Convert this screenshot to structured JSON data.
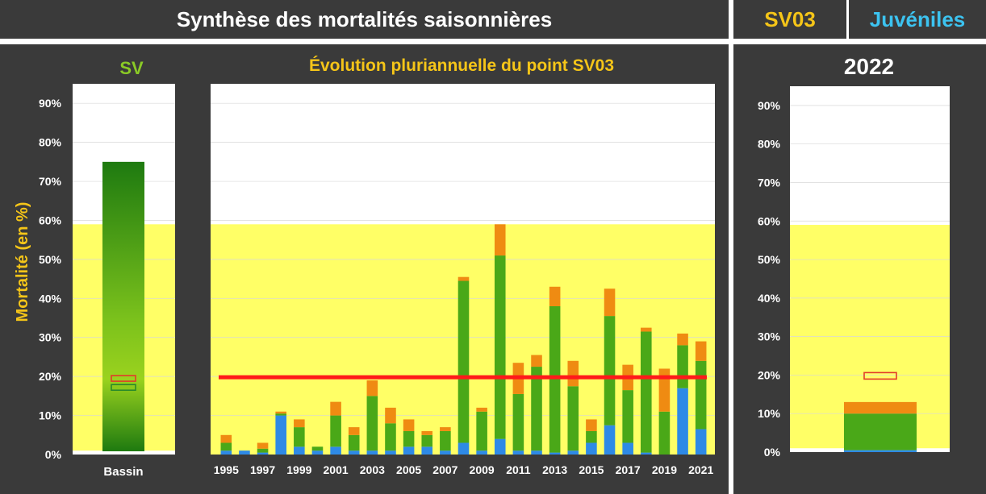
{
  "header": {
    "title": "Synthèse des mortalités saisonnières",
    "station": "SV03",
    "category": "Juvéniles",
    "station_color": "#f5c518",
    "category_color": "#3cc3f0"
  },
  "colors": {
    "panel_bg": "#3a3a3a",
    "zone_yellow": "#ffff66",
    "threshold_red": "#ff1a1a",
    "title_yellow": "#f5c518",
    "sv_green": "#8ac926"
  },
  "chart_data": [
    {
      "type": "bar",
      "title": "SV",
      "categories": [
        "Bassin"
      ],
      "values": [
        75
      ],
      "markers": [
        {
          "value": 19.5,
          "color": "#e23b2a"
        },
        {
          "value": 17.2,
          "color": "#2a8a2a"
        }
      ],
      "ylabel": "Mortalité (en %)",
      "ylim": [
        0,
        95
      ],
      "yticks": [
        "0%",
        "10%",
        "20%",
        "30%",
        "40%",
        "50%",
        "60%",
        "70%",
        "80%",
        "90%"
      ],
      "zone": [
        1,
        59
      ]
    },
    {
      "type": "bar",
      "title": "Évolution pluriannuelle du point SV03",
      "stacked": true,
      "categories": [
        "1995",
        "1996",
        "1997",
        "1998",
        "1999",
        "2000",
        "2001",
        "2002",
        "2003",
        "2004",
        "2005",
        "2006",
        "2007",
        "2008",
        "2009",
        "2010",
        "2011",
        "2012",
        "2013",
        "2014",
        "2015",
        "2016",
        "2017",
        "2018",
        "2019",
        "2020",
        "2021"
      ],
      "xticks": [
        "1995",
        "1997",
        "1999",
        "2001",
        "2003",
        "2005",
        "2007",
        "2009",
        "2011",
        "2013",
        "2015",
        "2017",
        "2019",
        "2021"
      ],
      "series": [
        {
          "values": [
            1,
            1,
            0.5,
            10,
            2,
            1,
            2,
            1,
            1,
            1,
            2,
            2,
            1,
            3,
            1,
            4,
            1,
            1,
            0.5,
            1,
            3,
            7.5,
            3,
            0.5,
            0,
            17,
            6.5
          ],
          "color": "#2e8ae6"
        },
        {
          "values": [
            2,
            0,
            1,
            0.5,
            5,
            1,
            8,
            4,
            14,
            7,
            4,
            3,
            5,
            41.5,
            10,
            47,
            14.5,
            21.5,
            37.5,
            16.5,
            3,
            28,
            13.5,
            31,
            11,
            11,
            17.5
          ],
          "color": "#4aa818"
        },
        {
          "values": [
            2,
            0,
            1.5,
            0.5,
            2,
            0,
            3.5,
            2,
            4,
            4,
            3,
            1,
            1,
            1,
            1,
            8,
            8,
            3,
            5,
            6.5,
            3,
            7,
            6.5,
            1,
            11,
            3,
            5
          ],
          "color": "#ef8b12"
        }
      ],
      "ylim": [
        0,
        95
      ],
      "yticks": [
        "0%",
        "10%",
        "20%",
        "30%",
        "40%",
        "50%",
        "60%",
        "70%",
        "80%",
        "90%"
      ],
      "zone": [
        0,
        59
      ],
      "threshold": 19.8
    },
    {
      "type": "bar",
      "title": "2022",
      "stacked": true,
      "categories": [
        ""
      ],
      "series": [
        {
          "values": [
            0.5
          ],
          "color": "#2e8ae6"
        },
        {
          "values": [
            9.5
          ],
          "color": "#4aa818"
        },
        {
          "values": [
            3
          ],
          "color": "#ef8b12"
        }
      ],
      "marker": 19.8,
      "ylim": [
        0,
        95
      ],
      "yticks": [
        "0%",
        "10%",
        "20%",
        "30%",
        "40%",
        "50%",
        "60%",
        "70%",
        "80%",
        "90%"
      ],
      "zone": [
        1,
        59
      ]
    }
  ]
}
